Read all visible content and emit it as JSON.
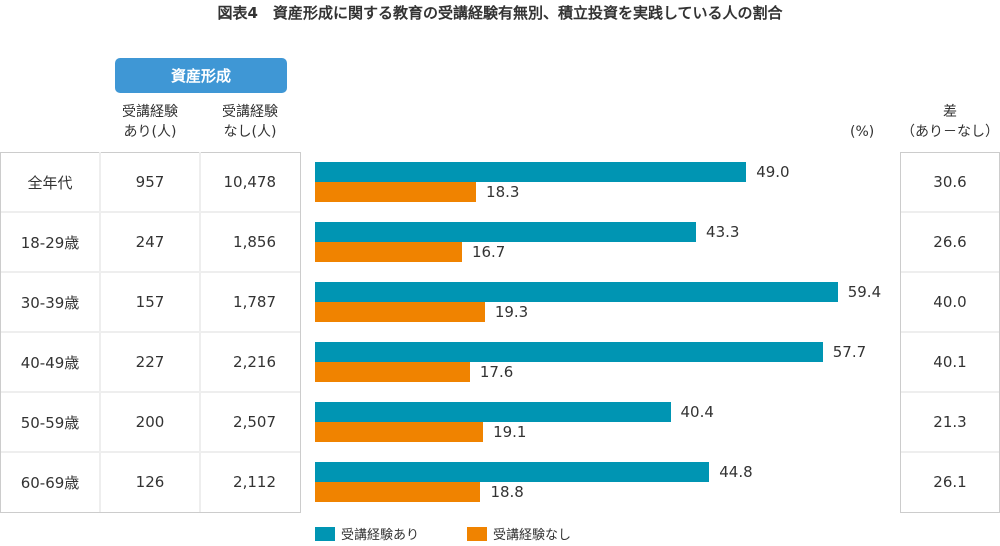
{
  "title": "図表4　資産形成に関する教育の受講経験有無別、積立投資を実践している人の割合",
  "group_header": "資産形成",
  "col_with": "受講経験\nあり(人)",
  "col_with_l1": "受講経験",
  "col_with_l2": "あり(人)",
  "col_without_l1": "受講経験",
  "col_without_l2": "なし(人)",
  "diff_header_l1": "差",
  "diff_header_l2": "（あり－なし）",
  "unit": "(%)",
  "colors": {
    "with": "#0095b3",
    "without": "#f08300",
    "header": "#3f97d5"
  },
  "rows": [
    {
      "age": "全年代",
      "n_with": "957",
      "n_without": "10,478",
      "diff": "30.6"
    },
    {
      "age": "18-29歳",
      "n_with": "247",
      "n_without": "1,856",
      "diff": "26.6"
    },
    {
      "age": "30-39歳",
      "n_with": "157",
      "n_without": "1,787",
      "diff": "40.0"
    },
    {
      "age": "40-49歳",
      "n_with": "227",
      "n_without": "2,216",
      "diff": "40.1"
    },
    {
      "age": "50-59歳",
      "n_with": "200",
      "n_without": "2,507",
      "diff": "21.3"
    },
    {
      "age": "60-69歳",
      "n_with": "126",
      "n_without": "2,112",
      "diff": "26.1"
    }
  ],
  "chart_data": {
    "type": "bar",
    "orientation": "horizontal",
    "categories": [
      "全年代",
      "18-29歳",
      "30-39歳",
      "40-49歳",
      "50-59歳",
      "60-69歳"
    ],
    "series": [
      {
        "name": "受講経験あり",
        "values": [
          49.0,
          43.3,
          59.4,
          57.7,
          40.4,
          44.8
        ]
      },
      {
        "name": "受講経験なし",
        "values": [
          18.3,
          16.7,
          19.3,
          17.6,
          19.1,
          18.8
        ]
      }
    ],
    "unit": "(%)",
    "legend_position": "bottom",
    "grid": false
  }
}
